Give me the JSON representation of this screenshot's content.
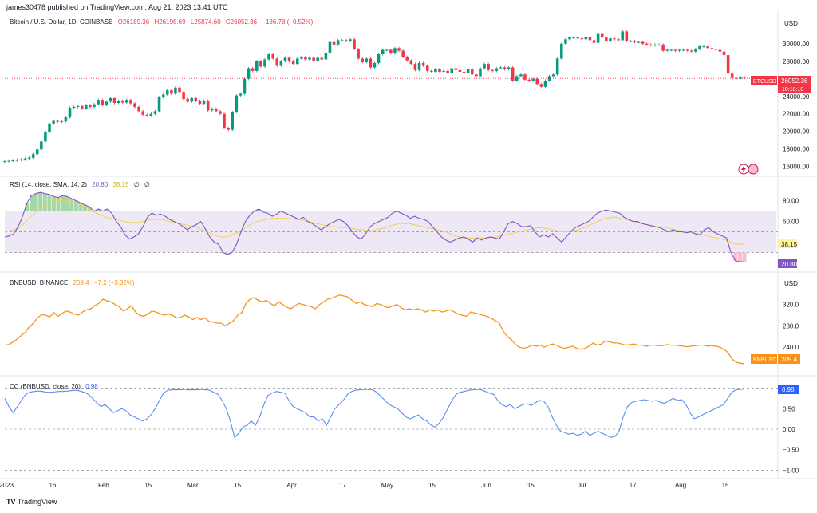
{
  "header": {
    "publisher": "james30478 published on TradingView.com, Aug 21, 2023 13:41 UTC"
  },
  "footer": {
    "logo": "TV",
    "brand": "TradingView"
  },
  "colors": {
    "up": "#089981",
    "down": "#f23645",
    "rsi": "#7e57c2",
    "rsi_sma": "#f0d44a",
    "bnb": "#f7931a",
    "cc": "#5b8def",
    "band": "#ede7f6"
  },
  "price_panel": {
    "title": "Bitcoin / U.S. Dollar, 1D, COINBASE",
    "open": "O26189.36",
    "high": "H26198.69",
    "low": "L25874.60",
    "close": "C26052.36",
    "change": "−136.78 (−0.52%)",
    "currency": "USD",
    "last_label": "BTCUSD",
    "last_value": "26052.36",
    "countdown": "10:18:10"
  },
  "rsi_panel": {
    "title": "RSI (14, close, SMA, 14, 2)",
    "rsi_value": "20.80",
    "sma_value": "38.15",
    "nan1": "∅",
    "nan2": "∅"
  },
  "bnb_panel": {
    "title": "BNBUSD, BINANCE",
    "value": "209.4",
    "change": "−7.2 (−3.32%)",
    "currency": "USD",
    "last_label": "BNBUSD",
    "last_value": "209.4"
  },
  "cc_panel": {
    "title": "CC (BNBUSD, close, 20)",
    "value": "0.98"
  },
  "chart_data": [
    {
      "type": "candlestick",
      "title": "Bitcoin / U.S. Dollar, 1D, COINBASE",
      "y_ticks": [
        "30000.00",
        "28000.00",
        "26000.00",
        "24000.00",
        "22000.00",
        "20000.00",
        "18000.00",
        "16000.00"
      ],
      "ylim": [
        15700,
        31800
      ],
      "last": 26052.36,
      "closes": [
        16600,
        16650,
        16700,
        16750,
        16800,
        16900,
        17000,
        17400,
        17950,
        18850,
        19950,
        20900,
        21200,
        21100,
        21150,
        21600,
        22700,
        22800,
        22900,
        22600,
        23000,
        22800,
        23100,
        23600,
        23000,
        23400,
        23800,
        23250,
        23500,
        23300,
        23600,
        23200,
        22800,
        22300,
        21900,
        21800,
        22000,
        22300,
        23900,
        24200,
        24700,
        24300,
        25000,
        24500,
        23700,
        23400,
        23800,
        23500,
        23150,
        23500,
        22400,
        22600,
        22300,
        22000,
        20400,
        20200,
        22200,
        24100,
        24300,
        26000,
        27200,
        26900,
        28000,
        27400,
        28200,
        28800,
        28300,
        27500,
        28000,
        28400,
        28000,
        27700,
        28300,
        28500,
        28200,
        28400,
        28000,
        28400,
        28200,
        28900,
        30200,
        29900,
        30400,
        30400,
        30300,
        30500,
        29400,
        28300,
        27900,
        28300,
        27300,
        27800,
        28800,
        29300,
        29300,
        28900,
        29500,
        29200,
        28500,
        28100,
        27700,
        27000,
        27800,
        27500,
        26900,
        26800,
        27100,
        26800,
        26900,
        26700,
        27200,
        27000,
        26800,
        26700,
        27100,
        26500,
        26300,
        27200,
        27700,
        27000,
        26900,
        27200,
        27300,
        27100,
        27300,
        25800,
        26300,
        26500,
        25900,
        25800,
        26000,
        25400,
        25100,
        25800,
        26300,
        26500,
        28300,
        30000,
        30500,
        30700,
        30700,
        30600,
        30500,
        30800,
        30400,
        30100,
        31200,
        30700,
        30300,
        30600,
        30500,
        30400,
        31400,
        30300,
        30300,
        30200,
        30200,
        30000,
        29900,
        29800,
        29900,
        29900,
        29200,
        29300,
        29300,
        29200,
        29300,
        29300,
        29200,
        29100,
        29400,
        29700,
        29700,
        29500,
        29400,
        29300,
        29100,
        28700,
        26600,
        26100,
        26000,
        26200,
        26100
      ],
      "candle_width_days": 1
    },
    {
      "type": "line",
      "title": "RSI (14, close, SMA, 14, 2)",
      "y_ticks": [
        "80.00",
        "60.00"
      ],
      "ylim": [
        15,
        92
      ],
      "bands": [
        70,
        50,
        30
      ],
      "series": [
        {
          "name": "RSI",
          "values": [
            45,
            46,
            48,
            55,
            65,
            78,
            85,
            87,
            88,
            87,
            86,
            84,
            83,
            85,
            84,
            82,
            80,
            78,
            76,
            74,
            70,
            72,
            70,
            72,
            68,
            60,
            55,
            47,
            43,
            45,
            48,
            55,
            64,
            68,
            66,
            67,
            65,
            62,
            60,
            58,
            55,
            52,
            55,
            57,
            60,
            53,
            45,
            40,
            38,
            30,
            28,
            30,
            38,
            50,
            60,
            66,
            70,
            72,
            69,
            68,
            65,
            67,
            70,
            68,
            66,
            64,
            62,
            64,
            60,
            58,
            55,
            52,
            55,
            58,
            60,
            62,
            60,
            56,
            50,
            45,
            43,
            48,
            55,
            58,
            60,
            62,
            64,
            68,
            70,
            68,
            66,
            63,
            65,
            63,
            62,
            60,
            55,
            50,
            45,
            42,
            40,
            42,
            44,
            45,
            43,
            40,
            44,
            42,
            44,
            45,
            44,
            43,
            50,
            58,
            60,
            58,
            55,
            55,
            56,
            50,
            45,
            47,
            45,
            48,
            44,
            40,
            45,
            50,
            54,
            56,
            58,
            60,
            64,
            68,
            70,
            71,
            70,
            69,
            68,
            64,
            62,
            60,
            60,
            58,
            57,
            56,
            55,
            54,
            52,
            50,
            52,
            50,
            50,
            49,
            50,
            48,
            47,
            52,
            54,
            50,
            48,
            46,
            44,
            30,
            22,
            21,
            21
          ]
        },
        {
          "name": "SMA",
          "values": [
            50,
            51,
            52,
            54,
            57,
            62,
            66,
            70,
            74,
            77,
            79,
            80,
            80,
            80,
            79,
            78,
            77,
            75,
            73,
            70,
            68,
            66,
            64,
            63,
            62,
            61,
            60,
            59,
            59,
            59,
            60,
            61,
            62,
            62,
            62,
            61,
            60,
            59,
            58,
            57,
            56,
            55,
            54,
            52,
            50,
            48,
            46,
            45,
            45,
            46,
            48,
            50,
            53,
            56,
            58,
            60,
            61,
            62,
            63,
            63,
            63,
            63,
            63,
            62,
            62,
            61,
            60,
            59,
            58,
            57,
            56,
            55,
            55,
            54,
            54,
            54,
            53,
            52,
            52,
            51,
            51,
            52,
            53,
            54,
            56,
            57,
            58,
            58,
            58,
            57,
            56,
            55,
            54,
            53,
            52,
            51,
            50,
            48,
            46,
            45,
            44,
            44,
            44,
            44,
            44,
            44,
            45,
            45,
            46,
            47,
            48,
            49,
            50,
            51,
            52,
            53,
            54,
            54,
            53,
            52,
            51,
            50,
            50,
            50,
            51,
            52,
            54,
            56,
            58,
            60,
            62,
            63,
            64,
            64,
            63,
            62,
            61,
            60,
            59,
            58,
            57,
            56,
            55,
            55,
            54,
            53,
            52,
            51,
            50,
            50,
            49,
            48,
            47,
            46,
            45,
            44,
            43,
            42,
            40,
            38,
            38,
            38
          ]
        }
      ]
    },
    {
      "type": "line",
      "title": "BNBUSD, BINANCE",
      "y_ticks": [
        "320.0",
        "280.0",
        "240.0"
      ],
      "ylim": [
        200,
        345
      ],
      "series": [
        {
          "name": "BNBUSD",
          "values": [
            244,
            245,
            250,
            255,
            262,
            268,
            278,
            285,
            295,
            301,
            300,
            297,
            305,
            298,
            303,
            308,
            306,
            302,
            300,
            306,
            310,
            312,
            318,
            322,
            330,
            327,
            325,
            320,
            316,
            308,
            312,
            318,
            306,
            300,
            298,
            302,
            308,
            306,
            303,
            300,
            302,
            300,
            295,
            296,
            300,
            297,
            292,
            296,
            292,
            295,
            288,
            287,
            285,
            285,
            280,
            285,
            290,
            300,
            305,
            322,
            330,
            333,
            328,
            325,
            328,
            322,
            318,
            325,
            320,
            315,
            312,
            318,
            322,
            320,
            318,
            316,
            312,
            320,
            325,
            330,
            332,
            335,
            338,
            336,
            334,
            328,
            322,
            325,
            320,
            318,
            316,
            322,
            320,
            316,
            314,
            318,
            320,
            314,
            310,
            312,
            310,
            312,
            310,
            306,
            310,
            308,
            310,
            306,
            308,
            310,
            306,
            302,
            300,
            298,
            306,
            304,
            302,
            300,
            298,
            294,
            290,
            286,
            270,
            260,
            254,
            245,
            240,
            238,
            240,
            244,
            242,
            244,
            240,
            244,
            246,
            244,
            240,
            238,
            240,
            242,
            238,
            236,
            238,
            242,
            248,
            244,
            246,
            252,
            250,
            248,
            248,
            246,
            244,
            245,
            246,
            244,
            244,
            242,
            244,
            244,
            243,
            243,
            245,
            244,
            244,
            243,
            242,
            241,
            242,
            243,
            244,
            244,
            242,
            243,
            242,
            240,
            236,
            230,
            218,
            212,
            210,
            209
          ]
        }
      ]
    },
    {
      "type": "line",
      "title": "CC (BNBUSD, close, 20)",
      "y_ticks": [
        "0.50",
        "0.00",
        "−0.50",
        "−1.00"
      ],
      "ylim": [
        -1.05,
        1.05
      ],
      "bands": [
        1,
        0,
        -1
      ],
      "series": [
        {
          "name": "CC",
          "values": [
            0.75,
            0.55,
            0.4,
            0.55,
            0.7,
            0.85,
            0.9,
            0.92,
            0.93,
            0.92,
            0.9,
            0.9,
            0.91,
            0.92,
            0.92,
            0.93,
            0.94,
            0.95,
            0.93,
            0.9,
            0.85,
            0.75,
            0.65,
            0.55,
            0.6,
            0.5,
            0.4,
            0.45,
            0.5,
            0.45,
            0.35,
            0.3,
            0.25,
            0.2,
            0.25,
            0.35,
            0.5,
            0.7,
            0.88,
            0.95,
            0.96,
            0.96,
            0.96,
            0.97,
            0.96,
            0.96,
            0.96,
            0.97,
            0.96,
            0.95,
            0.9,
            0.85,
            0.7,
            0.5,
            0.2,
            -0.2,
            -0.1,
            0.05,
            0.1,
            0.2,
            0.1,
            0.3,
            0.6,
            0.82,
            0.88,
            0.92,
            0.9,
            0.88,
            0.7,
            0.55,
            0.5,
            0.45,
            0.4,
            0.3,
            0.3,
            0.2,
            0.25,
            0.1,
            0.3,
            0.5,
            0.6,
            0.7,
            0.85,
            0.92,
            0.95,
            0.96,
            0.97,
            0.97,
            0.96,
            0.9,
            0.8,
            0.7,
            0.6,
            0.55,
            0.5,
            0.4,
            0.3,
            0.25,
            0.3,
            0.35,
            0.25,
            0.2,
            0.1,
            0.05,
            0.15,
            0.3,
            0.5,
            0.7,
            0.85,
            0.9,
            0.92,
            0.95,
            0.96,
            0.97,
            0.96,
            0.92,
            0.88,
            0.85,
            0.7,
            0.6,
            0.55,
            0.6,
            0.5,
            0.55,
            0.6,
            0.62,
            0.58,
            0.65,
            0.7,
            0.68,
            0.55,
            0.3,
            0.1,
            -0.05,
            -0.08,
            -0.12,
            -0.1,
            -0.15,
            -0.12,
            -0.05,
            -0.15,
            -0.1,
            -0.05,
            -0.1,
            -0.15,
            -0.2,
            -0.18,
            -0.05,
            0.3,
            0.55,
            0.65,
            0.68,
            0.7,
            0.72,
            0.7,
            0.68,
            0.7,
            0.65,
            0.63,
            0.7,
            0.75,
            0.7,
            0.72,
            0.6,
            0.4,
            0.25,
            0.3,
            0.35,
            0.4,
            0.45,
            0.5,
            0.55,
            0.6,
            0.75,
            0.9,
            0.96,
            0.97,
            0.98
          ]
        }
      ]
    }
  ],
  "x_axis": {
    "ticks": [
      {
        "label": "2023",
        "day": 0
      },
      {
        "label": "16",
        "day": 15
      },
      {
        "label": "Feb",
        "day": 31
      },
      {
        "label": "15",
        "day": 45
      },
      {
        "label": "Mar",
        "day": 59
      },
      {
        "label": "15",
        "day": 73
      },
      {
        "label": "Apr",
        "day": 90
      },
      {
        "label": "17",
        "day": 106
      },
      {
        "label": "May",
        "day": 120
      },
      {
        "label": "15",
        "day": 134
      },
      {
        "label": "Jun",
        "day": 151
      },
      {
        "label": "15",
        "day": 165
      },
      {
        "label": "Jul",
        "day": 181
      },
      {
        "label": "17",
        "day": 197
      },
      {
        "label": "Aug",
        "day": 212
      },
      {
        "label": "15",
        "day": 226
      }
    ]
  }
}
